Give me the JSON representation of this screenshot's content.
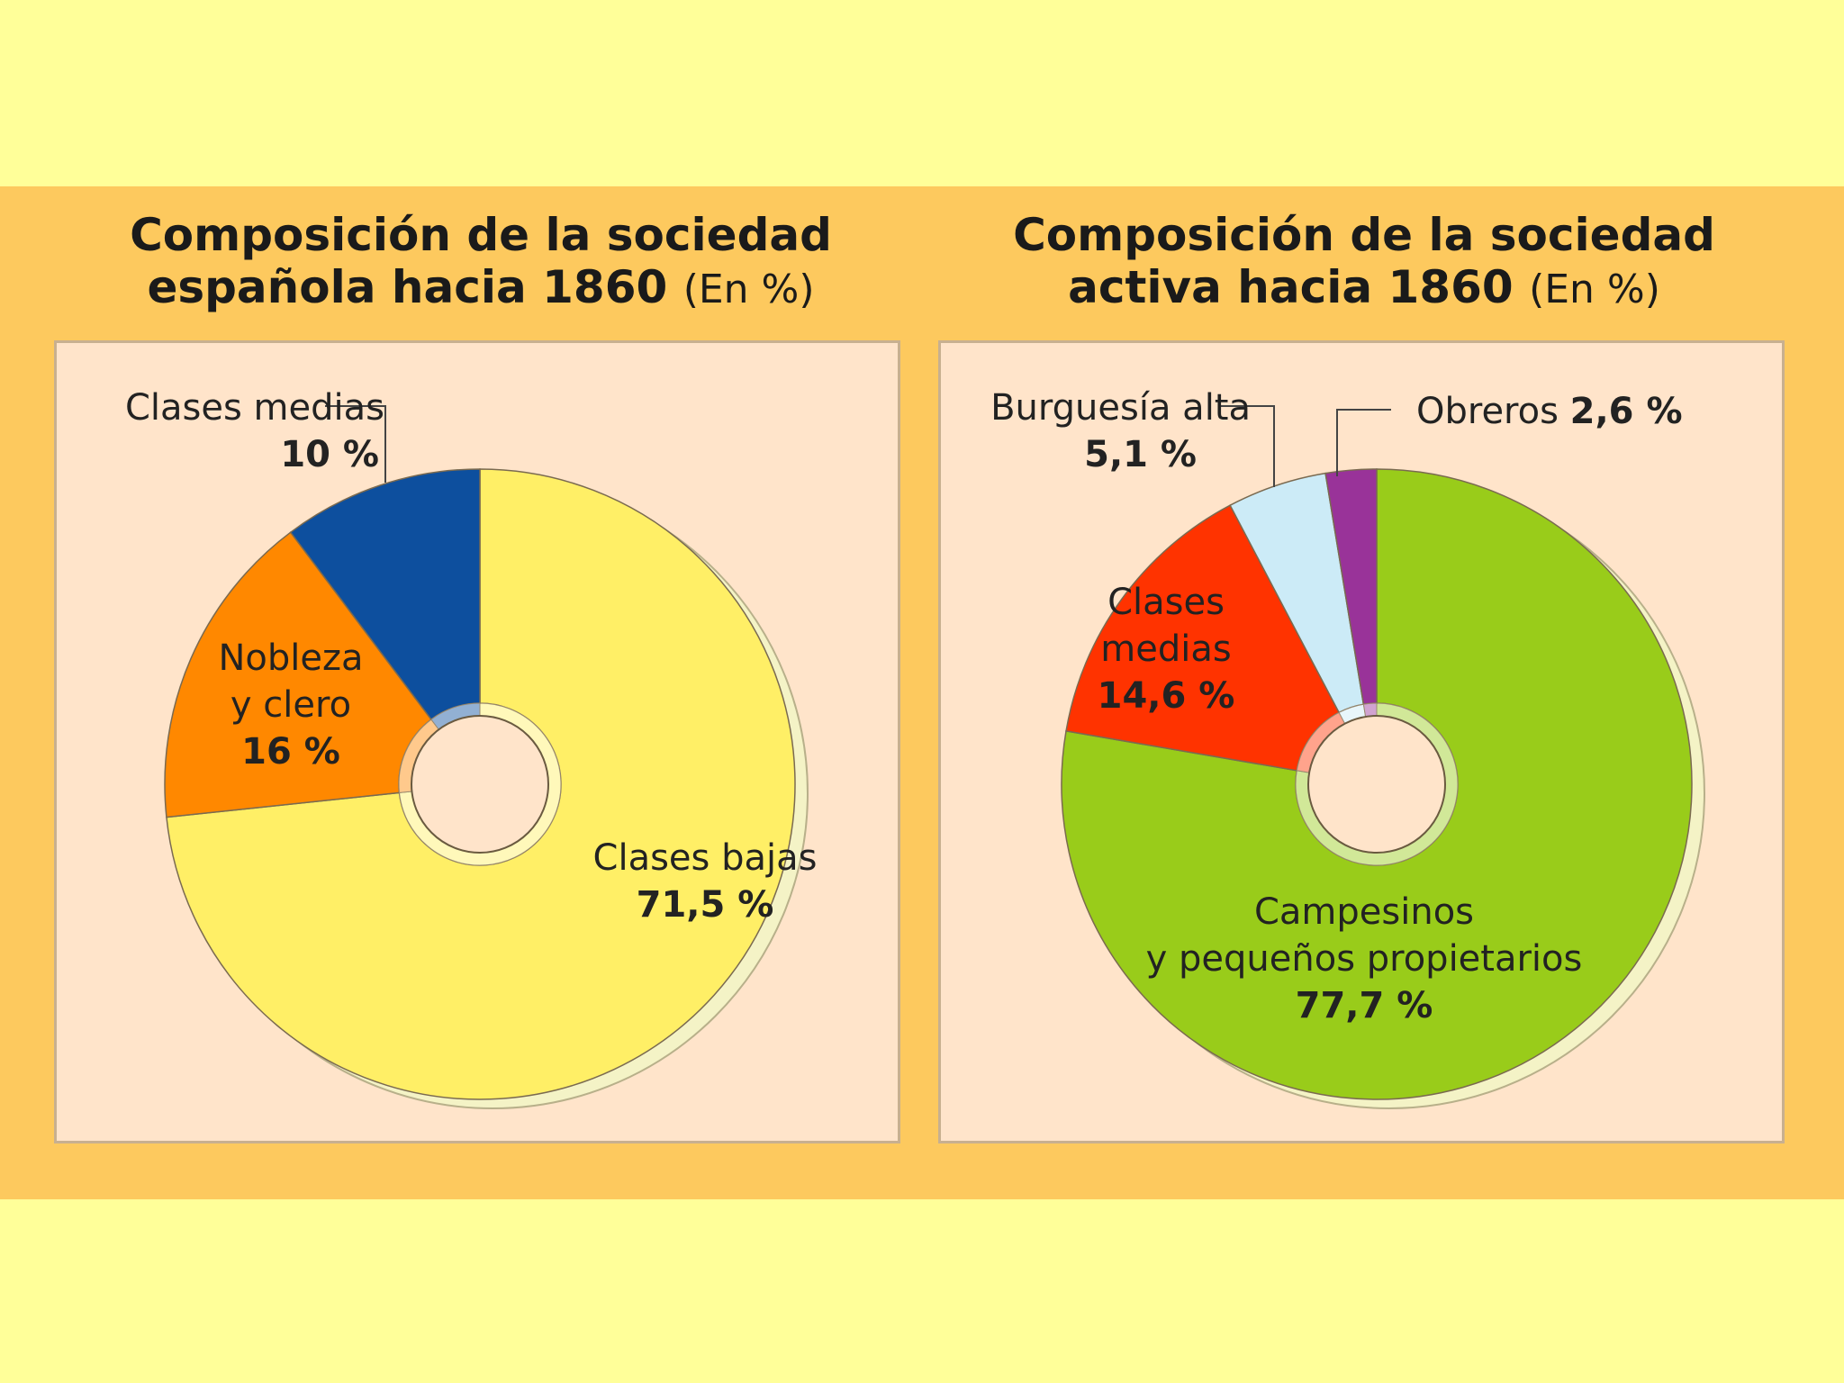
{
  "chart_data": [
    {
      "type": "pie",
      "title_main": "Composición de la sociedad",
      "title_line2": "española hacia 1860",
      "title_unit": "(En %)",
      "slices": [
        {
          "label": "Clases bajas",
          "value_text": "71,5 %",
          "value": 71.5,
          "color": "#FFEF66"
        },
        {
          "label": "Nobleza",
          "label_line2": "y clero",
          "value_text": "16 %",
          "value": 16,
          "color": "#FF8800"
        },
        {
          "label": "Clases medias",
          "value_text": "10 %",
          "value": 10,
          "color": "#0D4F9E"
        }
      ]
    },
    {
      "type": "pie",
      "title_main": "Composición de la sociedad",
      "title_line2": "activa hacia 1860",
      "title_unit": "(En %)",
      "slices": [
        {
          "label": "Campesinos",
          "label_line2": "y pequeños propietarios",
          "value_text": "77,7 %",
          "value": 77.7,
          "color": "#99CC1A"
        },
        {
          "label": "Clases",
          "label_line2": "medias",
          "value_text": "14,6 %",
          "value": 14.6,
          "color": "#FF3300"
        },
        {
          "label": "Burguesía alta",
          "value_text": "5,1 %",
          "value": 5.1,
          "color": "#CCEBF7"
        },
        {
          "label": "Obreros",
          "value_text": "2,6 %",
          "value": 2.6,
          "color": "#993399"
        }
      ]
    }
  ]
}
